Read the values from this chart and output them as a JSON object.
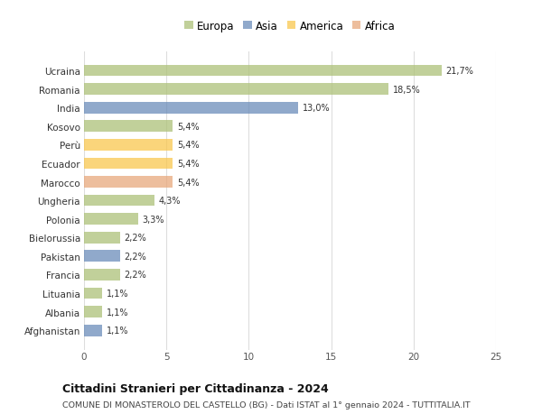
{
  "countries": [
    "Ucraina",
    "Romania",
    "India",
    "Kosovo",
    "Perù",
    "Ecuador",
    "Marocco",
    "Ungheria",
    "Polonia",
    "Bielorussia",
    "Pakistan",
    "Francia",
    "Lituania",
    "Albania",
    "Afghanistan"
  ],
  "values": [
    21.7,
    18.5,
    13.0,
    5.4,
    5.4,
    5.4,
    5.4,
    4.3,
    3.3,
    2.2,
    2.2,
    2.2,
    1.1,
    1.1,
    1.1
  ],
  "labels": [
    "21,7%",
    "18,5%",
    "13,0%",
    "5,4%",
    "5,4%",
    "5,4%",
    "5,4%",
    "4,3%",
    "3,3%",
    "2,2%",
    "2,2%",
    "2,2%",
    "1,1%",
    "1,1%",
    "1,1%"
  ],
  "continents": [
    "Europa",
    "Europa",
    "Asia",
    "Europa",
    "America",
    "America",
    "Africa",
    "Europa",
    "Europa",
    "Europa",
    "Asia",
    "Europa",
    "Europa",
    "Europa",
    "Asia"
  ],
  "colors": {
    "Europa": "#adc178",
    "Asia": "#6b8cba",
    "America": "#f9c74f",
    "Africa": "#e8a87c"
  },
  "xlim": [
    0,
    25
  ],
  "xticks": [
    0,
    5,
    10,
    15,
    20,
    25
  ],
  "title": "Cittadini Stranieri per Cittadinanza - 2024",
  "subtitle": "COMUNE DI MONASTEROLO DEL CASTELLO (BG) - Dati ISTAT al 1° gennaio 2024 - TUTTITALIA.IT",
  "background_color": "#ffffff",
  "grid_color": "#dddddd",
  "bar_alpha": 0.75,
  "legend_entries": [
    "Europa",
    "Asia",
    "America",
    "Africa"
  ]
}
